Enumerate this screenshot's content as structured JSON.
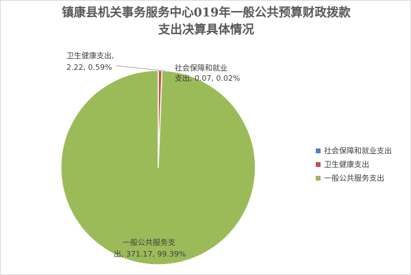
{
  "chart_data": {
    "type": "pie",
    "title": [
      "镇康县机关事务服务中心019年一般公共预算财政拨款",
      "支出决算具体情况"
    ],
    "slices": [
      {
        "name": "社会保障和就业支出",
        "value": 0.07,
        "percent": "0.02%",
        "color": "#4F81BD",
        "label_lines": [
          "社会保障和就业",
          "支出, 0.07, 0.02%"
        ]
      },
      {
        "name": "卫生健康支出",
        "value": 2.22,
        "percent": "0.59%",
        "color": "#C0504D",
        "label_lines": [
          "卫生健康支出,",
          "2.22, 0.59%"
        ]
      },
      {
        "name": "一般公共服务支出",
        "value": 371.17,
        "percent": "99.39%",
        "color": "#9BBB59",
        "label_lines": [
          "一般公共服务支",
          "出, 371.17, 99.39%"
        ]
      }
    ],
    "legend": {
      "position": "right"
    }
  }
}
